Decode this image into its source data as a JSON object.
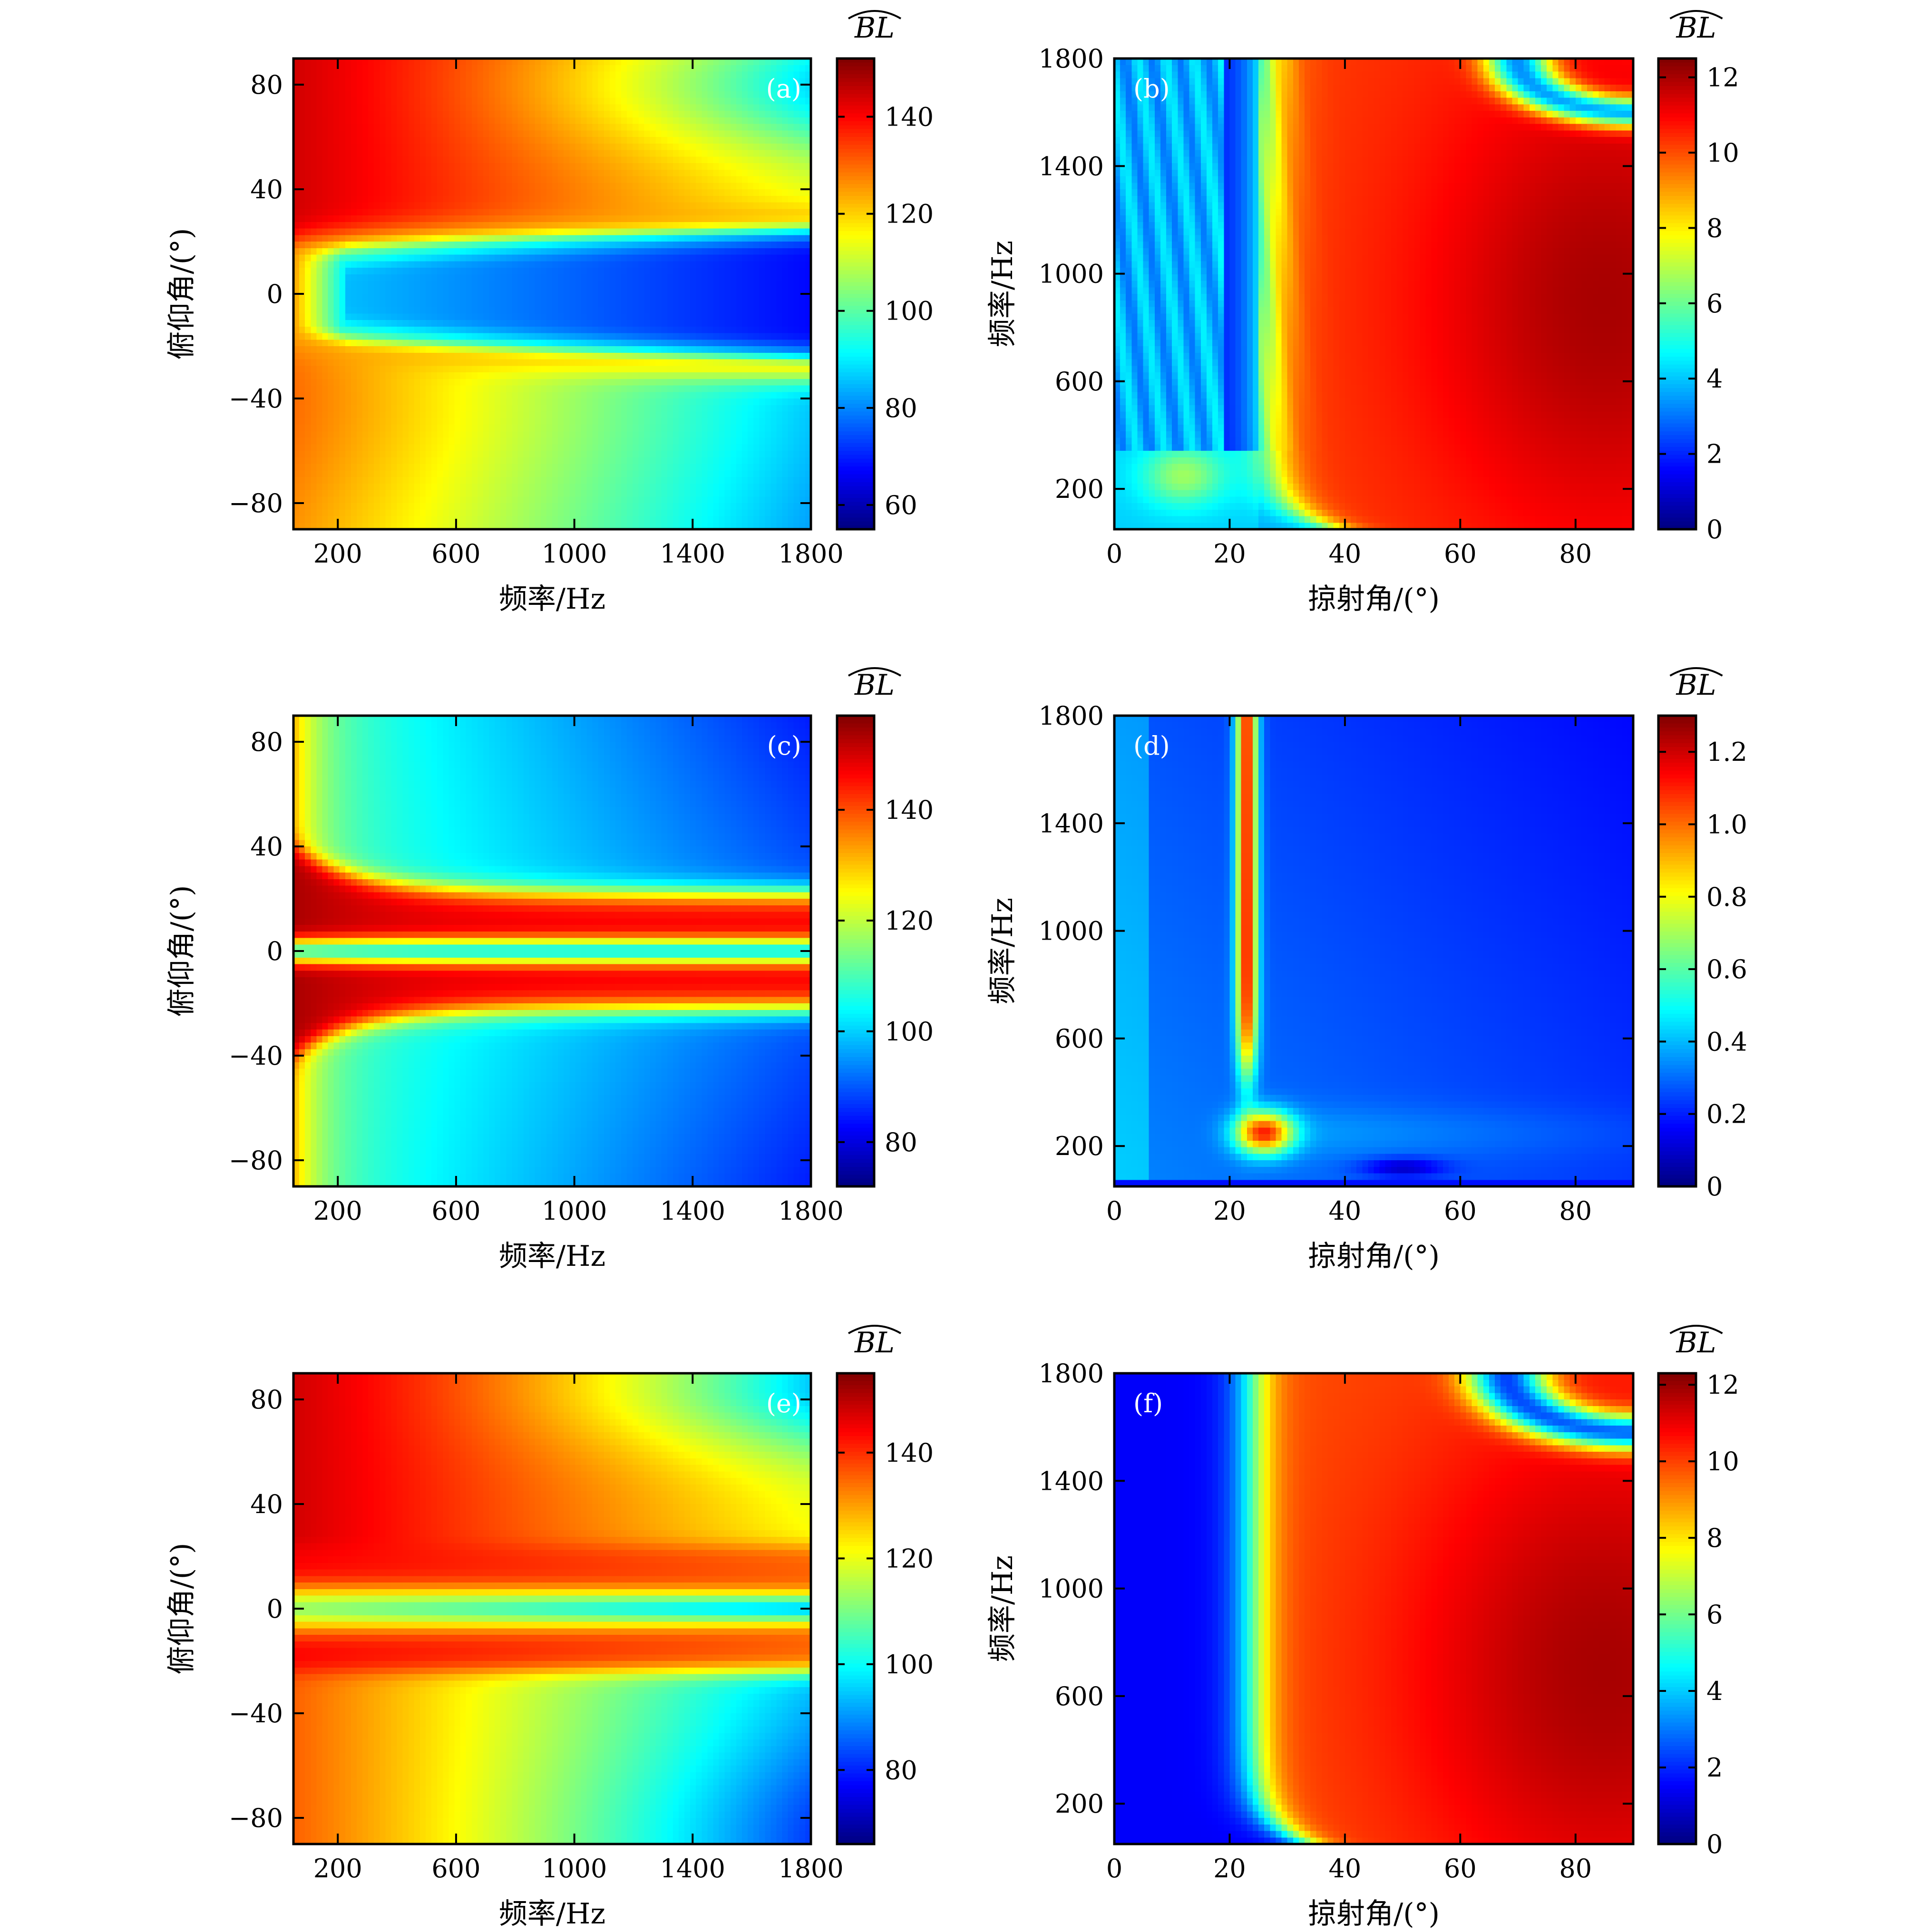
{
  "colormap": [
    "#00007f",
    "#0000ff",
    "#007fff",
    "#00ffff",
    "#7fff7f",
    "#ffff00",
    "#ff7f00",
    "#ff0000",
    "#7f0000"
  ],
  "chart_data": [
    {
      "id": "a",
      "type": "heatmap",
      "panel_label": "(a)",
      "xlabel": "频率/Hz",
      "ylabel": "俯仰角/(°)",
      "xlim": [
        50,
        1800
      ],
      "ylim": [
        -90,
        90
      ],
      "xticks": [
        200,
        600,
        1000,
        1400,
        1800
      ],
      "xtick_labels": [
        "200",
        "600",
        "1000",
        "1400",
        "1800"
      ],
      "yticks": [
        -80,
        -40,
        0,
        40,
        80
      ],
      "ytick_labels": [
        "−80",
        "−40",
        "0",
        "40",
        "80"
      ],
      "colorbar": {
        "title": "BL",
        "range": [
          55,
          152
        ],
        "ticks": [
          60,
          80,
          100,
          120,
          140
        ],
        "tick_labels": [
          "60",
          "80",
          "100",
          "120",
          "140"
        ]
      },
      "pattern": "pitch-a"
    },
    {
      "id": "b",
      "type": "heatmap",
      "panel_label": "(b)",
      "xlabel": "掠射角/(°)",
      "ylabel": "频率/Hz",
      "xlim": [
        0,
        90
      ],
      "ylim": [
        50,
        1800
      ],
      "xticks": [
        0,
        20,
        40,
        60,
        80
      ],
      "xtick_labels": [
        "0",
        "20",
        "40",
        "60",
        "80"
      ],
      "yticks": [
        200,
        600,
        1000,
        1400,
        1800
      ],
      "ytick_labels": [
        "200",
        "600",
        "1000",
        "1400",
        "1800"
      ],
      "colorbar": {
        "title": "BL",
        "range": [
          0,
          12.5
        ],
        "ticks": [
          0,
          2,
          4,
          6,
          8,
          10,
          12
        ],
        "tick_labels": [
          "0",
          "2",
          "4",
          "6",
          "8",
          "10",
          "12"
        ]
      },
      "pattern": "graze-b"
    },
    {
      "id": "c",
      "type": "heatmap",
      "panel_label": "(c)",
      "xlabel": "频率/Hz",
      "ylabel": "俯仰角/(°)",
      "xlim": [
        50,
        1800
      ],
      "ylim": [
        -90,
        90
      ],
      "xticks": [
        200,
        600,
        1000,
        1400,
        1800
      ],
      "xtick_labels": [
        "200",
        "600",
        "1000",
        "1400",
        "1800"
      ],
      "yticks": [
        -80,
        -40,
        0,
        40,
        80
      ],
      "ytick_labels": [
        "−80",
        "−40",
        "0",
        "40",
        "80"
      ],
      "colorbar": {
        "title": "BL",
        "range": [
          72,
          157
        ],
        "ticks": [
          80,
          100,
          120,
          140
        ],
        "tick_labels": [
          "80",
          "100",
          "120",
          "140"
        ]
      },
      "pattern": "pitch-c"
    },
    {
      "id": "d",
      "type": "heatmap",
      "panel_label": "(d)",
      "xlabel": "掠射角/(°)",
      "ylabel": "频率/Hz",
      "xlim": [
        0,
        90
      ],
      "ylim": [
        50,
        1800
      ],
      "xticks": [
        0,
        20,
        40,
        60,
        80
      ],
      "xtick_labels": [
        "0",
        "20",
        "40",
        "60",
        "80"
      ],
      "yticks": [
        200,
        600,
        1000,
        1400,
        1800
      ],
      "ytick_labels": [
        "200",
        "600",
        "1000",
        "1400",
        "1800"
      ],
      "colorbar": {
        "title": "BL",
        "range": [
          0,
          1.3
        ],
        "ticks": [
          0,
          0.2,
          0.4,
          0.6,
          0.8,
          1.0,
          1.2
        ],
        "tick_labels": [
          "0",
          "0.2",
          "0.4",
          "0.6",
          "0.8",
          "1.0",
          "1.2"
        ]
      },
      "pattern": "graze-d"
    },
    {
      "id": "e",
      "type": "heatmap",
      "panel_label": "(e)",
      "xlabel": "频率/Hz",
      "ylabel": "俯仰角/(°)",
      "xlim": [
        50,
        1800
      ],
      "ylim": [
        -90,
        90
      ],
      "xticks": [
        200,
        600,
        1000,
        1400,
        1800
      ],
      "xtick_labels": [
        "200",
        "600",
        "1000",
        "1400",
        "1800"
      ],
      "yticks": [
        -80,
        -40,
        0,
        40,
        80
      ],
      "ytick_labels": [
        "−80",
        "−40",
        "0",
        "40",
        "80"
      ],
      "colorbar": {
        "title": "BL",
        "range": [
          66,
          155
        ],
        "ticks": [
          80,
          100,
          120,
          140
        ],
        "tick_labels": [
          "80",
          "100",
          "120",
          "140"
        ]
      },
      "pattern": "pitch-e"
    },
    {
      "id": "f",
      "type": "heatmap",
      "panel_label": "(f)",
      "xlabel": "掠射角/(°)",
      "ylabel": "频率/Hz",
      "xlim": [
        0,
        90
      ],
      "ylim": [
        50,
        1800
      ],
      "xticks": [
        0,
        20,
        40,
        60,
        80
      ],
      "xtick_labels": [
        "0",
        "20",
        "40",
        "60",
        "80"
      ],
      "yticks": [
        200,
        600,
        1000,
        1400,
        1800
      ],
      "ytick_labels": [
        "200",
        "600",
        "1000",
        "1400",
        "1800"
      ],
      "colorbar": {
        "title": "BL",
        "range": [
          0,
          12.3
        ],
        "ticks": [
          0,
          2,
          4,
          6,
          8,
          10,
          12
        ],
        "tick_labels": [
          "0",
          "2",
          "4",
          "6",
          "8",
          "10",
          "12"
        ]
      },
      "pattern": "graze-f"
    }
  ]
}
